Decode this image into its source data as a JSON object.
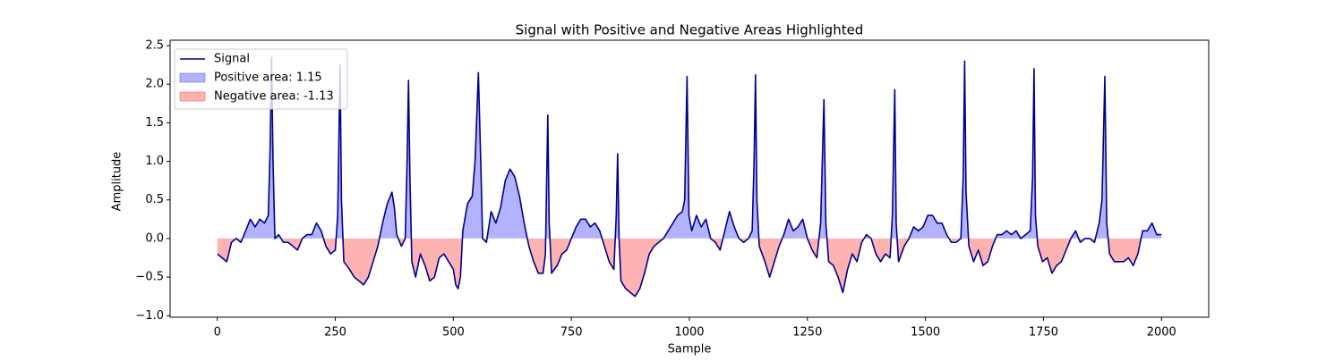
{
  "chart_data": {
    "type": "line",
    "title": "Signal with Positive and Negative Areas Highlighted",
    "xlabel": "Sample",
    "ylabel": "Amplitude",
    "x": [
      0,
      10,
      20,
      30,
      40,
      50,
      60,
      70,
      80,
      90,
      100,
      108,
      112,
      115,
      118,
      122,
      130,
      140,
      150,
      160,
      170,
      180,
      190,
      200,
      210,
      220,
      230,
      240,
      250,
      255,
      260,
      263,
      268,
      280,
      290,
      300,
      310,
      320,
      330,
      340,
      350,
      360,
      370,
      375,
      380,
      390,
      398,
      402,
      405,
      408,
      412,
      420,
      430,
      440,
      450,
      460,
      470,
      480,
      490,
      500,
      505,
      510,
      515,
      520,
      530,
      540,
      546,
      553,
      558,
      562,
      570,
      580,
      590,
      600,
      610,
      620,
      630,
      640,
      650,
      660,
      670,
      680,
      690,
      695,
      700,
      703,
      708,
      720,
      730,
      740,
      750,
      760,
      770,
      780,
      790,
      800,
      810,
      820,
      830,
      840,
      845,
      848,
      851,
      855,
      865,
      875,
      885,
      895,
      905,
      915,
      925,
      935,
      945,
      955,
      965,
      975,
      985,
      990,
      995,
      999,
      1005,
      1015,
      1025,
      1035,
      1045,
      1055,
      1065,
      1075,
      1085,
      1095,
      1105,
      1115,
      1125,
      1133,
      1137,
      1140,
      1143,
      1148,
      1160,
      1170,
      1180,
      1190,
      1200,
      1210,
      1220,
      1230,
      1240,
      1250,
      1260,
      1270,
      1278,
      1285,
      1289,
      1295,
      1305,
      1315,
      1325,
      1335,
      1345,
      1355,
      1365,
      1375,
      1385,
      1395,
      1405,
      1415,
      1425,
      1430,
      1435,
      1438,
      1443,
      1455,
      1465,
      1475,
      1485,
      1495,
      1505,
      1515,
      1525,
      1535,
      1545,
      1555,
      1565,
      1575,
      1580,
      1583,
      1586,
      1592,
      1602,
      1612,
      1622,
      1632,
      1642,
      1652,
      1662,
      1672,
      1682,
      1692,
      1702,
      1712,
      1722,
      1727,
      1730,
      1733,
      1738,
      1748,
      1758,
      1768,
      1778,
      1788,
      1798,
      1808,
      1818,
      1828,
      1838,
      1848,
      1858,
      1868,
      1874,
      1880,
      1884,
      1890,
      1900,
      1910,
      1920,
      1930,
      1940,
      1950,
      1960,
      1970,
      1980,
      1990,
      2000
    ],
    "series": [
      {
        "name": "Signal",
        "color": "#00008b",
        "values": [
          -0.2,
          -0.25,
          -0.3,
          -0.05,
          0.0,
          -0.05,
          0.1,
          0.25,
          0.15,
          0.25,
          0.2,
          0.3,
          1.2,
          2.35,
          1.0,
          0.0,
          0.05,
          -0.05,
          -0.05,
          -0.1,
          -0.15,
          0.0,
          0.05,
          0.05,
          0.2,
          0.1,
          -0.1,
          -0.2,
          -0.15,
          0.3,
          2.25,
          0.5,
          -0.3,
          -0.4,
          -0.5,
          -0.55,
          -0.6,
          -0.5,
          -0.3,
          -0.1,
          0.2,
          0.45,
          0.6,
          0.4,
          0.05,
          -0.1,
          0.0,
          1.0,
          2.05,
          0.8,
          -0.3,
          -0.5,
          -0.2,
          -0.35,
          -0.55,
          -0.5,
          -0.25,
          -0.2,
          -0.3,
          -0.4,
          -0.6,
          -0.65,
          -0.5,
          0.1,
          0.45,
          0.55,
          1.0,
          2.15,
          1.0,
          0.0,
          -0.05,
          0.35,
          0.2,
          0.4,
          0.75,
          0.9,
          0.8,
          0.55,
          0.2,
          -0.1,
          -0.3,
          -0.45,
          -0.45,
          -0.2,
          1.6,
          0.2,
          -0.45,
          -0.35,
          -0.2,
          -0.15,
          0.0,
          0.15,
          0.25,
          0.25,
          0.15,
          0.2,
          0.1,
          -0.1,
          -0.3,
          -0.4,
          0.3,
          1.1,
          0.0,
          -0.55,
          -0.65,
          -0.7,
          -0.75,
          -0.65,
          -0.45,
          -0.2,
          -0.1,
          -0.05,
          0.0,
          0.1,
          0.2,
          0.3,
          0.35,
          0.5,
          2.1,
          0.3,
          0.1,
          0.3,
          0.15,
          0.25,
          0.0,
          -0.05,
          -0.15,
          0.1,
          0.35,
          0.15,
          0.0,
          -0.05,
          0.0,
          0.1,
          1.0,
          2.12,
          0.5,
          -0.1,
          -0.3,
          -0.5,
          -0.3,
          -0.1,
          0.05,
          0.25,
          0.1,
          0.15,
          0.25,
          0.0,
          -0.15,
          -0.25,
          0.2,
          1.8,
          0.2,
          -0.3,
          -0.35,
          -0.5,
          -0.7,
          -0.4,
          -0.2,
          -0.3,
          -0.05,
          0.05,
          0.0,
          -0.2,
          -0.3,
          -0.2,
          -0.25,
          0.3,
          1.93,
          0.2,
          -0.3,
          -0.1,
          0.0,
          0.15,
          0.1,
          0.15,
          0.3,
          0.3,
          0.2,
          0.2,
          0.05,
          -0.05,
          -0.05,
          0.0,
          0.8,
          2.3,
          0.6,
          -0.1,
          -0.3,
          -0.15,
          -0.35,
          -0.3,
          -0.1,
          0.05,
          0.05,
          0.1,
          0.05,
          0.1,
          0.0,
          0.05,
          0.1,
          0.8,
          2.2,
          0.3,
          -0.1,
          -0.3,
          -0.25,
          -0.45,
          -0.35,
          -0.3,
          -0.15,
          0.0,
          0.1,
          -0.05,
          0.0,
          0.0,
          -0.05,
          0.2,
          0.5,
          2.1,
          0.2,
          -0.2,
          -0.3,
          -0.3,
          -0.3,
          -0.25,
          -0.35,
          -0.2,
          0.1,
          0.1,
          0.2,
          0.05,
          0.05
        ]
      }
    ],
    "fills": [
      {
        "name": "Positive area: 1.15",
        "color": "#0000ff",
        "side": "positive"
      },
      {
        "name": "Negative area: -1.13",
        "color": "#ff0000",
        "side": "negative"
      }
    ],
    "xlim": [
      -100,
      2100
    ],
    "xticks": [
      0,
      250,
      500,
      750,
      1000,
      1250,
      1500,
      1750,
      2000
    ],
    "ylim": [
      -1.02,
      2.57
    ],
    "yticks": [
      {
        "value": -1,
        "label": "−1.0"
      },
      {
        "value": -0.5,
        "label": "−0.5"
      },
      {
        "value": 0,
        "label": "0.0"
      },
      0.5,
      {
        "value": 1,
        "label": "1.0"
      },
      1.5,
      {
        "value": 2,
        "label": "2.0"
      },
      2.5
    ],
    "grid": false,
    "legend": "upper left"
  }
}
